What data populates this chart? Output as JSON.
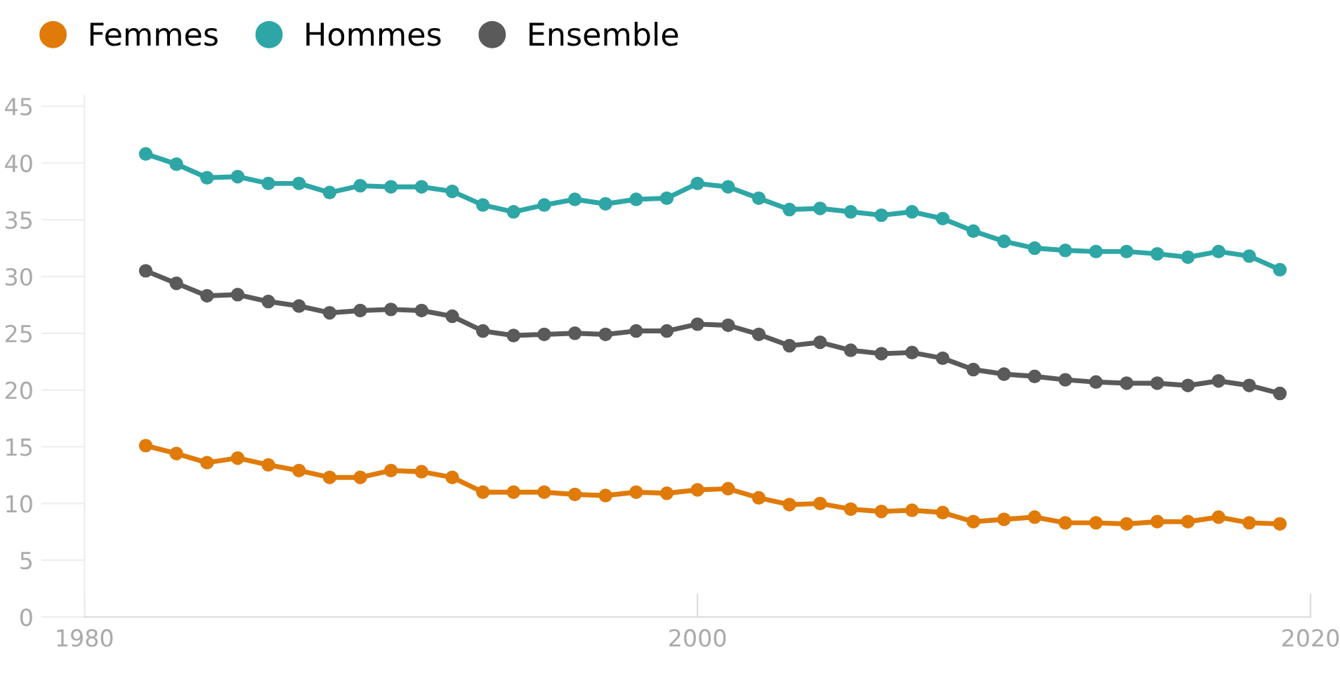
{
  "chart_data": {
    "type": "line",
    "x": [
      1982,
      1983,
      1984,
      1985,
      1986,
      1987,
      1988,
      1989,
      1990,
      1991,
      1992,
      1993,
      1994,
      1995,
      1996,
      1997,
      1998,
      1999,
      2000,
      2001,
      2002,
      2003,
      2004,
      2005,
      2006,
      2007,
      2008,
      2009,
      2010,
      2011,
      2012,
      2013,
      2014,
      2015,
      2016,
      2017,
      2018,
      2019
    ],
    "series": [
      {
        "name": "Femmes",
        "color": "#e07b0a",
        "values": [
          15.1,
          14.4,
          13.6,
          14.0,
          13.4,
          12.9,
          12.3,
          12.3,
          12.9,
          12.8,
          12.3,
          11.0,
          11.0,
          11.0,
          10.8,
          10.7,
          11.0,
          10.9,
          11.2,
          11.3,
          10.5,
          9.9,
          10.0,
          9.5,
          9.3,
          9.4,
          9.2,
          8.4,
          8.6,
          8.8,
          8.3,
          8.3,
          8.2,
          8.4,
          8.4,
          8.8,
          8.3,
          8.2
        ]
      },
      {
        "name": "Hommes",
        "color": "#2ea6a6",
        "values": [
          40.8,
          39.9,
          38.7,
          38.8,
          38.2,
          38.2,
          37.4,
          38.0,
          37.9,
          37.9,
          37.5,
          36.3,
          35.7,
          36.3,
          36.8,
          36.4,
          36.8,
          36.9,
          38.2,
          37.9,
          36.9,
          35.9,
          36.0,
          35.7,
          35.4,
          35.7,
          35.1,
          34.0,
          33.1,
          32.5,
          32.3,
          32.2,
          32.2,
          32.0,
          31.7,
          32.2,
          31.8,
          30.6
        ]
      },
      {
        "name": "Ensemble",
        "color": "#5a5a5a",
        "values": [
          30.5,
          29.4,
          28.3,
          28.4,
          27.8,
          27.4,
          26.8,
          27.0,
          27.1,
          27.0,
          26.5,
          25.2,
          24.8,
          24.9,
          25.0,
          24.9,
          25.2,
          25.2,
          25.8,
          25.7,
          24.9,
          23.9,
          24.2,
          23.5,
          23.2,
          23.3,
          22.8,
          21.8,
          21.4,
          21.2,
          20.9,
          20.7,
          20.6,
          20.6,
          20.4,
          20.8,
          20.4,
          19.7
        ]
      }
    ],
    "xlim": [
      1980,
      2020
    ],
    "xticks": [
      1980,
      2000,
      2020
    ],
    "ylim": [
      0,
      46
    ],
    "yticks": [
      0,
      5,
      10,
      15,
      20,
      25,
      30,
      35,
      40,
      45
    ],
    "marker": "circle",
    "line_style": "solid",
    "legend": "top left",
    "grid": false
  }
}
